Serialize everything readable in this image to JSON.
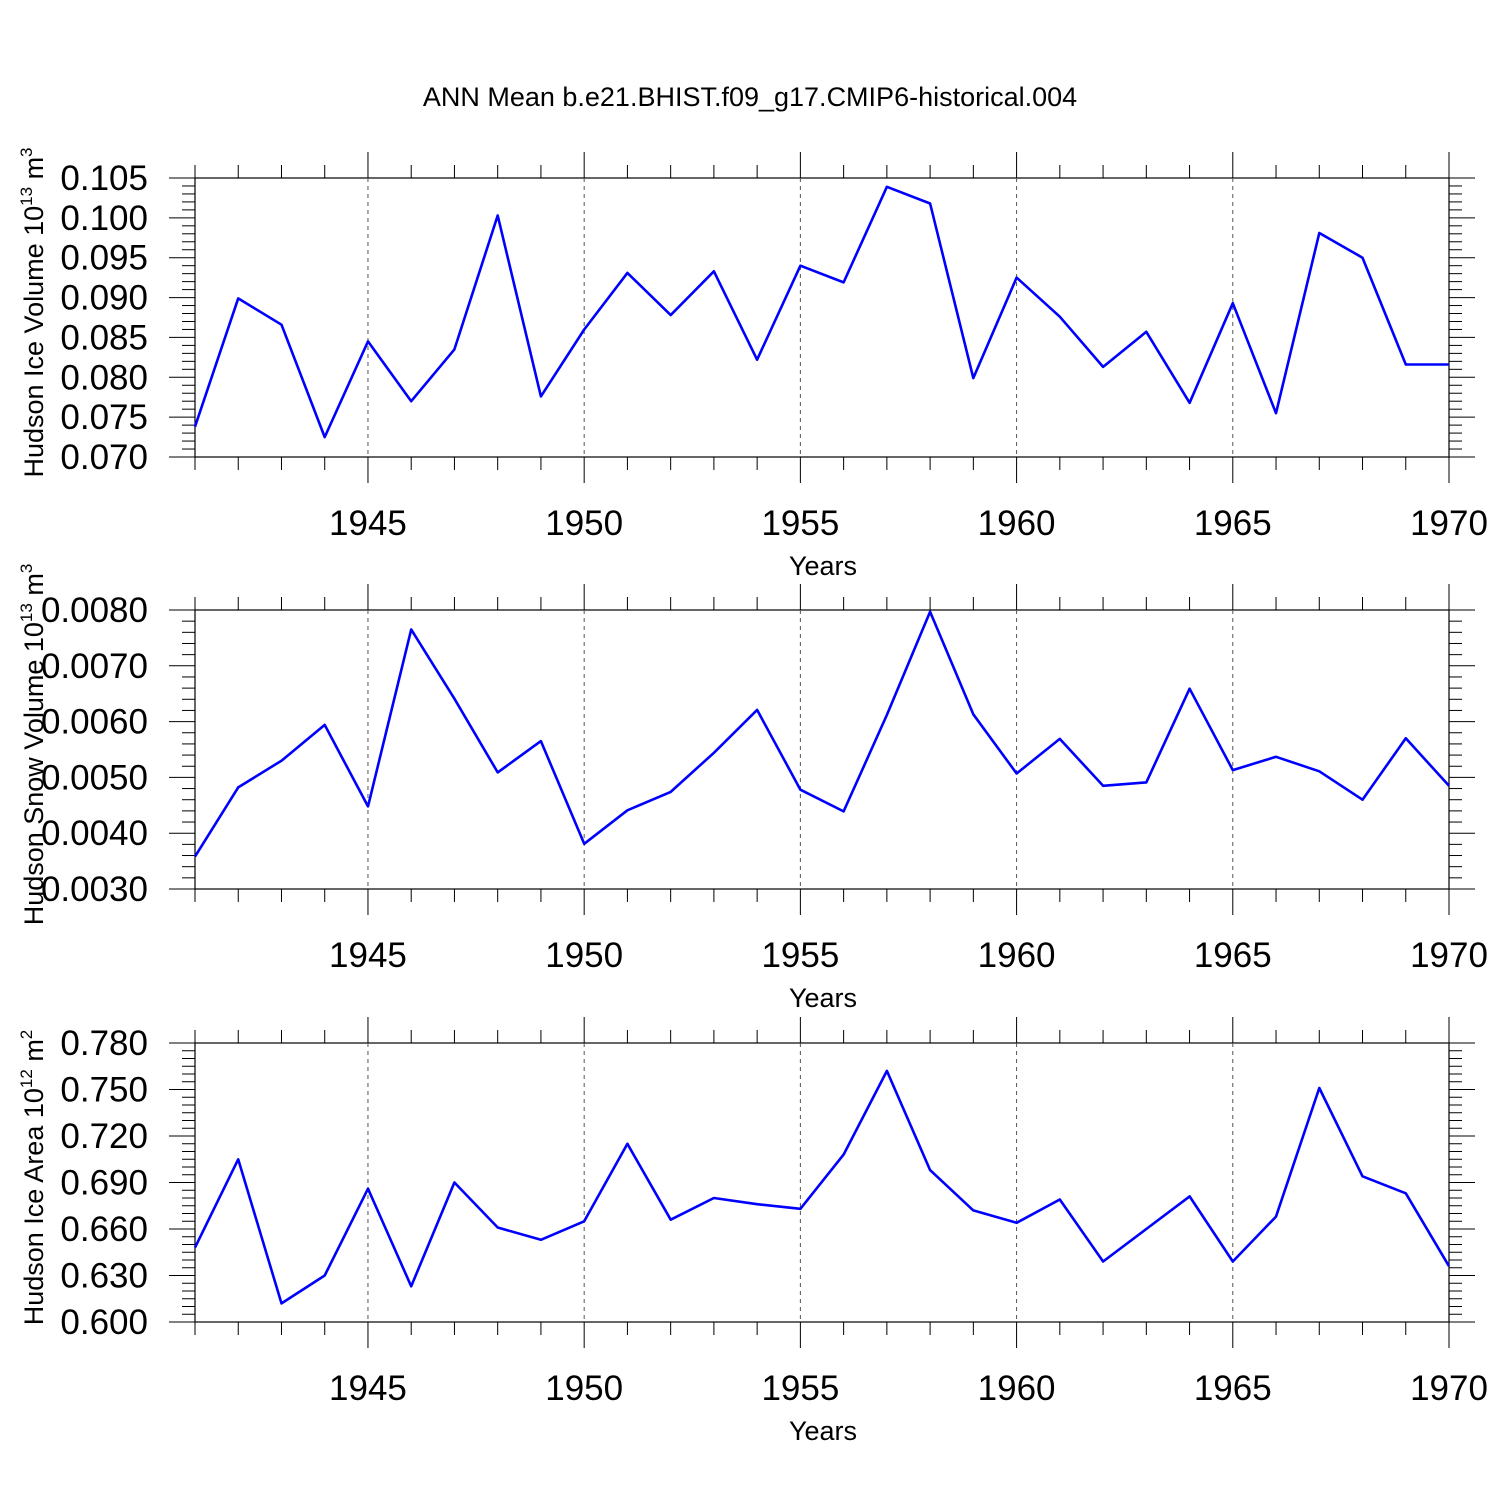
{
  "title": "ANN Mean b.e21.BHIST.f09_g17.CMIP6-historical.004",
  "chart_data": [
    {
      "type": "line",
      "ylabel": "Hudson Ice Volume 10",
      "ylabel_exp": "13",
      "ylabel_unit": " m",
      "ylabel_unit_exp": "3",
      "xlabel": "Years",
      "xlim": [
        1941,
        1970
      ],
      "ylim": [
        0.07,
        0.105
      ],
      "yticks": [
        "0.070",
        "0.075",
        "0.080",
        "0.085",
        "0.090",
        "0.095",
        "0.100",
        "0.105"
      ],
      "xticks": [
        "1945",
        "1950",
        "1955",
        "1960",
        "1965",
        "1970"
      ],
      "series": [
        {
          "name": "Hudson Ice Volume",
          "color": "#0000ff",
          "x": [
            1941,
            1942,
            1943,
            1944,
            1945,
            1946,
            1947,
            1948,
            1949,
            1950,
            1951,
            1952,
            1953,
            1954,
            1955,
            1956,
            1957,
            1958,
            1959,
            1960,
            1961,
            1962,
            1963,
            1964,
            1965,
            1966,
            1967,
            1968,
            1969,
            1970
          ],
          "values": [
            0.0738,
            0.0899,
            0.0866,
            0.0725,
            0.0845,
            0.077,
            0.0835,
            0.1003,
            0.0776,
            0.086,
            0.0931,
            0.0878,
            0.0933,
            0.0822,
            0.094,
            0.0919,
            0.1039,
            0.1018,
            0.0799,
            0.0925,
            0.0876,
            0.0813,
            0.0857,
            0.0768,
            0.0893,
            0.0755,
            0.0981,
            0.095,
            0.0816,
            0.0816
          ]
        }
      ]
    },
    {
      "type": "line",
      "ylabel": "Hudson Snow Volume 10",
      "ylabel_exp": "13",
      "ylabel_unit": " m",
      "ylabel_unit_exp": "3",
      "xlabel": "Years",
      "xlim": [
        1941,
        1970
      ],
      "ylim": [
        0.003,
        0.008
      ],
      "yticks": [
        "0.0030",
        "0.0040",
        "0.0050",
        "0.0060",
        "0.0070",
        "0.0080"
      ],
      "xticks": [
        "1945",
        "1950",
        "1955",
        "1960",
        "1965",
        "1970"
      ],
      "series": [
        {
          "name": "Hudson Snow Volume",
          "color": "#0000ff",
          "x": [
            1941,
            1942,
            1943,
            1944,
            1945,
            1946,
            1947,
            1948,
            1949,
            1950,
            1951,
            1952,
            1953,
            1954,
            1955,
            1956,
            1957,
            1958,
            1959,
            1960,
            1961,
            1962,
            1963,
            1964,
            1965,
            1966,
            1967,
            1968,
            1969,
            1970
          ],
          "values": [
            0.00358,
            0.00482,
            0.0053,
            0.00594,
            0.00448,
            0.00765,
            0.00641,
            0.00509,
            0.00565,
            0.00381,
            0.00441,
            0.00474,
            0.00544,
            0.00621,
            0.00478,
            0.00439,
            0.00612,
            0.00797,
            0.00613,
            0.00507,
            0.00569,
            0.00485,
            0.00491,
            0.00659,
            0.00513,
            0.00537,
            0.00511,
            0.0046,
            0.0057,
            0.00485
          ]
        }
      ]
    },
    {
      "type": "line",
      "ylabel": "Hudson Ice Area 10",
      "ylabel_exp": "12",
      "ylabel_unit": " m",
      "ylabel_unit_exp": "2",
      "xlabel": "Years",
      "xlim": [
        1941,
        1970
      ],
      "ylim": [
        0.6,
        0.78
      ],
      "yticks": [
        "0.600",
        "0.630",
        "0.660",
        "0.690",
        "0.720",
        "0.750",
        "0.780"
      ],
      "xticks": [
        "1945",
        "1950",
        "1955",
        "1960",
        "1965",
        "1970"
      ],
      "series": [
        {
          "name": "Hudson Ice Area",
          "color": "#0000ff",
          "x": [
            1941,
            1942,
            1943,
            1944,
            1945,
            1946,
            1947,
            1948,
            1949,
            1950,
            1951,
            1952,
            1953,
            1954,
            1955,
            1956,
            1957,
            1958,
            1959,
            1960,
            1961,
            1962,
            1963,
            1964,
            1965,
            1966,
            1967,
            1968,
            1969,
            1970
          ],
          "values": [
            0.648,
            0.705,
            0.612,
            0.63,
            0.686,
            0.623,
            0.69,
            0.661,
            0.653,
            0.665,
            0.715,
            0.666,
            0.68,
            0.676,
            0.673,
            0.708,
            0.762,
            0.698,
            0.672,
            0.664,
            0.679,
            0.639,
            0.66,
            0.681,
            0.639,
            0.668,
            0.751,
            0.694,
            0.683,
            0.636
          ]
        }
      ]
    }
  ]
}
